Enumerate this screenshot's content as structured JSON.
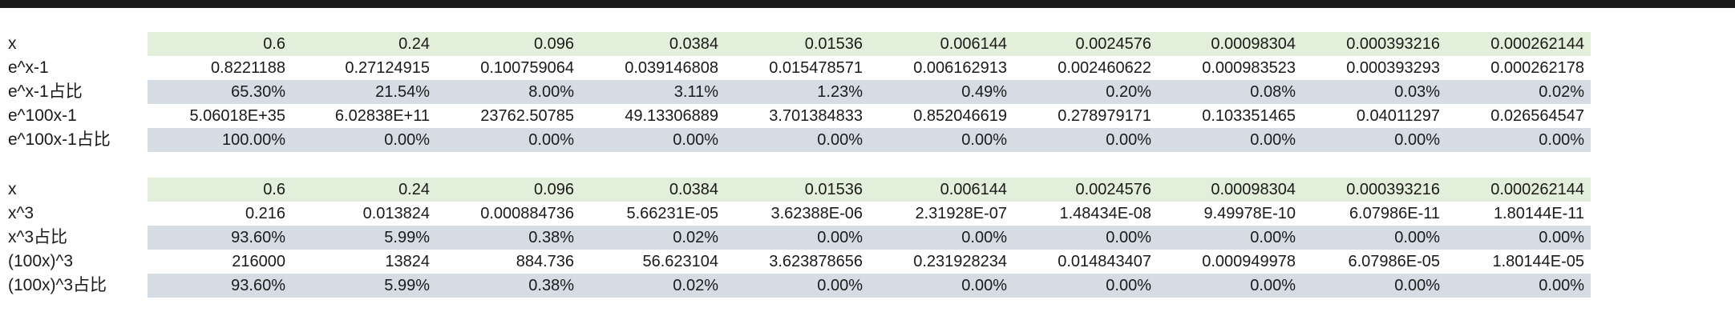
{
  "table1": {
    "rows": [
      {
        "label": "x",
        "style": "green",
        "values": [
          "0.6",
          "0.24",
          "0.096",
          "0.0384",
          "0.01536",
          "0.006144",
          "0.0024576",
          "0.00098304",
          "0.000393216",
          "0.000262144"
        ]
      },
      {
        "label": "e^x-1",
        "style": "plain",
        "values": [
          "0.8221188",
          "0.27124915",
          "0.100759064",
          "0.039146808",
          "0.015478571",
          "0.006162913",
          "0.002460622",
          "0.000983523",
          "0.000393293",
          "0.000262178"
        ]
      },
      {
        "label": "e^x-1占比",
        "style": "blue",
        "values": [
          "65.30%",
          "21.54%",
          "8.00%",
          "3.11%",
          "1.23%",
          "0.49%",
          "0.20%",
          "0.08%",
          "0.03%",
          "0.02%"
        ]
      },
      {
        "label": "e^100x-1",
        "style": "plain",
        "values": [
          "5.06018E+35",
          "6.02838E+11",
          "23762.50785",
          "49.13306889",
          "3.701384833",
          "0.852046619",
          "0.278979171",
          "0.103351465",
          "0.04011297",
          "0.026564547"
        ]
      },
      {
        "label": "e^100x-1占比",
        "style": "blue",
        "values": [
          "100.00%",
          "0.00%",
          "0.00%",
          "0.00%",
          "0.00%",
          "0.00%",
          "0.00%",
          "0.00%",
          "0.00%",
          "0.00%"
        ]
      }
    ]
  },
  "table2": {
    "rows": [
      {
        "label": "x",
        "style": "green",
        "values": [
          "0.6",
          "0.24",
          "0.096",
          "0.0384",
          "0.01536",
          "0.006144",
          "0.0024576",
          "0.00098304",
          "0.000393216",
          "0.000262144"
        ]
      },
      {
        "label": "x^3",
        "style": "plain",
        "values": [
          "0.216",
          "0.013824",
          "0.000884736",
          "5.66231E-05",
          "3.62388E-06",
          "2.31928E-07",
          "1.48434E-08",
          "9.49978E-10",
          "6.07986E-11",
          "1.80144E-11"
        ]
      },
      {
        "label": "x^3占比",
        "style": "blue",
        "values": [
          "93.60%",
          "5.99%",
          "0.38%",
          "0.02%",
          "0.00%",
          "0.00%",
          "0.00%",
          "0.00%",
          "0.00%",
          "0.00%"
        ]
      },
      {
        "label": "(100x)^3",
        "style": "plain",
        "values": [
          "216000",
          "13824",
          "884.736",
          "56.623104",
          "3.623878656",
          "0.231928234",
          "0.014843407",
          "0.000949978",
          "6.07986E-05",
          "1.80144E-05"
        ]
      },
      {
        "label": "(100x)^3占比",
        "style": "blue",
        "values": [
          "93.60%",
          "5.99%",
          "0.38%",
          "0.02%",
          "0.00%",
          "0.00%",
          "0.00%",
          "0.00%",
          "0.00%",
          "0.00%"
        ]
      }
    ]
  },
  "colors": {
    "green_fill": "#e2efda",
    "blue_fill": "#d6dce4",
    "top_bar": "#1b1b1b"
  }
}
